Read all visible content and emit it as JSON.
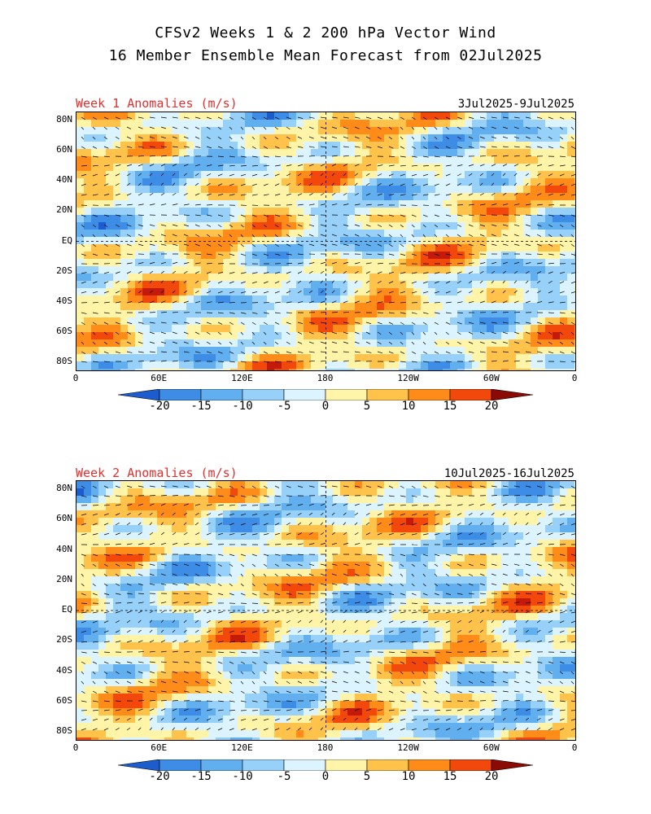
{
  "title_line1": "CFSv2 Weeks 1 & 2 200 hPa Vector Wind",
  "title_line2": "16 Member Ensemble Mean Forecast from 02Jul2025",
  "panels": [
    {
      "label": "Week 1 Anomalies (m/s)",
      "dates": "3Jul2025-9Jul2025"
    },
    {
      "label": "Week 2 Anomalies (m/s)",
      "dates": "10Jul2025-16Jul2025"
    }
  ],
  "lat_labels": [
    "80N",
    "60N",
    "40N",
    "20N",
    "EQ",
    "20S",
    "40S",
    "60S",
    "80S"
  ],
  "lon_labels": [
    "0",
    "60E",
    "120E",
    "180",
    "120W",
    "60W",
    "0"
  ],
  "colorbar": {
    "ticks": [
      "-20",
      "-15",
      "-10",
      "-5",
      "0",
      "5",
      "10",
      "15",
      "20"
    ],
    "colors": [
      "#1c5ccc",
      "#3d8de6",
      "#62aff0",
      "#97d0f8",
      "#dcf4ff",
      "#fff4a8",
      "#ffc24a",
      "#ff8c18",
      "#f2480c",
      "#c41a0c",
      "#8c0a04"
    ]
  }
}
